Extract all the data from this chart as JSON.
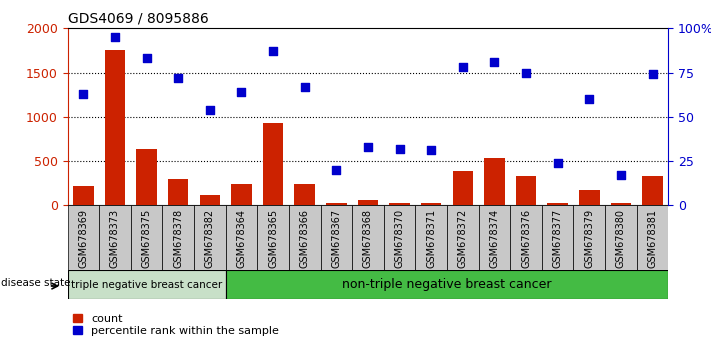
{
  "title": "GDS4069 / 8095886",
  "samples": [
    "GSM678369",
    "GSM678373",
    "GSM678375",
    "GSM678378",
    "GSM678382",
    "GSM678364",
    "GSM678365",
    "GSM678366",
    "GSM678367",
    "GSM678368",
    "GSM678370",
    "GSM678371",
    "GSM678372",
    "GSM678374",
    "GSM678376",
    "GSM678377",
    "GSM678379",
    "GSM678380",
    "GSM678381"
  ],
  "counts": [
    220,
    1760,
    640,
    300,
    120,
    240,
    930,
    240,
    30,
    60,
    30,
    30,
    390,
    530,
    330,
    30,
    170,
    30,
    330
  ],
  "percentiles": [
    63,
    95,
    83,
    72,
    54,
    64,
    87,
    67,
    20,
    33,
    32,
    31,
    78,
    81,
    75,
    24,
    60,
    17,
    74
  ],
  "group1_count": 5,
  "group1_label": "triple negative breast cancer",
  "group2_label": "non-triple negative breast cancer",
  "bar_color": "#cc2200",
  "dot_color": "#0000cc",
  "group1_bg": "#c8e0c8",
  "group2_bg": "#44bb44",
  "xticklabel_bg": "#c8c8c8",
  "ylim_left": [
    0,
    2000
  ],
  "ylim_right": [
    0,
    100
  ],
  "yticks_left": [
    0,
    500,
    1000,
    1500,
    2000
  ],
  "yticks_right": [
    0,
    25,
    50,
    75,
    100
  ],
  "ytick_labels_right": [
    "0",
    "25",
    "50",
    "75",
    "100%"
  ],
  "legend_count_label": "count",
  "legend_pct_label": "percentile rank within the sample",
  "disease_state_label": "disease state"
}
